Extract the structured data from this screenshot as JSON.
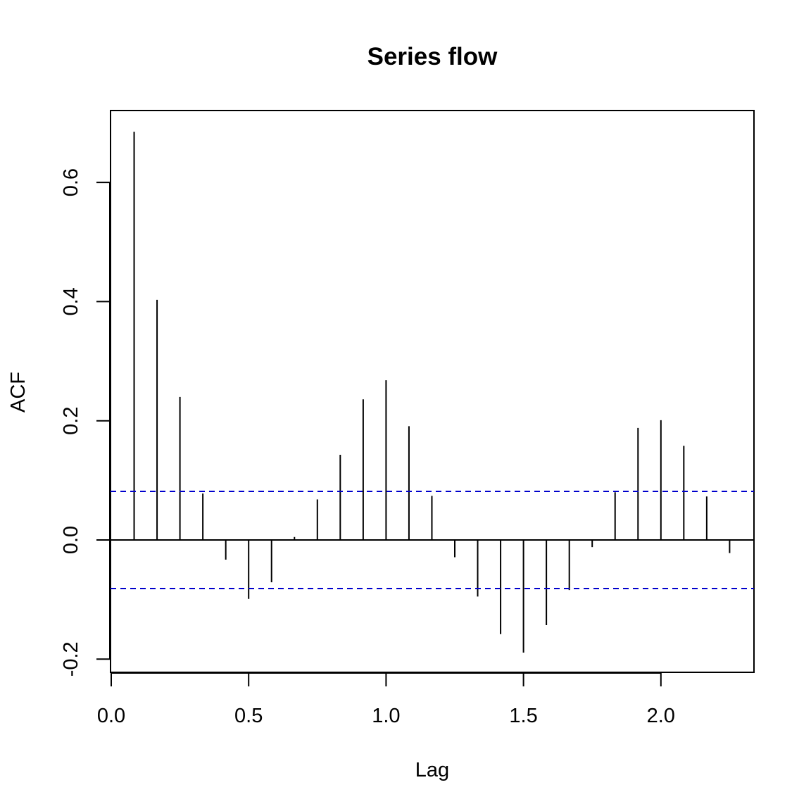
{
  "chart_data": {
    "type": "bar",
    "title": "Series flow",
    "xlabel": "Lag",
    "ylabel": "ACF",
    "xlim": [
      0,
      2.333
    ],
    "ylim": [
      -0.22,
      0.72
    ],
    "x_ticks": [
      {
        "value": 0.0,
        "label": "0.0"
      },
      {
        "value": 0.5,
        "label": "0.5"
      },
      {
        "value": 1.0,
        "label": "1.0"
      },
      {
        "value": 1.5,
        "label": "1.5"
      },
      {
        "value": 2.0,
        "label": "2.0"
      }
    ],
    "y_ticks": [
      {
        "value": -0.2,
        "label": "-0.2"
      },
      {
        "value": 0.0,
        "label": "0.0"
      },
      {
        "value": 0.2,
        "label": "0.2"
      },
      {
        "value": 0.4,
        "label": "0.4"
      },
      {
        "value": 0.6,
        "label": "0.6"
      }
    ],
    "lags": [
      0.0833,
      0.1667,
      0.25,
      0.3333,
      0.4167,
      0.5,
      0.5833,
      0.6667,
      0.75,
      0.8333,
      0.9167,
      1.0,
      1.0833,
      1.1667,
      1.25,
      1.3333,
      1.4167,
      1.5,
      1.5833,
      1.6667,
      1.75,
      1.8333,
      1.9167,
      2.0,
      2.0833,
      2.1667,
      2.25
    ],
    "acf": [
      0.685,
      0.403,
      0.24,
      0.078,
      -0.033,
      -0.099,
      -0.071,
      0.005,
      0.068,
      0.143,
      0.236,
      0.268,
      0.191,
      0.074,
      -0.029,
      -0.095,
      -0.158,
      -0.189,
      -0.143,
      -0.084,
      -0.012,
      0.08,
      0.188,
      0.201,
      0.158,
      0.073,
      -0.022
    ],
    "confidence_bounds": [
      0.0815,
      -0.0815
    ],
    "colors": {
      "spikes": "#000000",
      "bounds": "#0000cc",
      "axes": "#000000"
    }
  }
}
